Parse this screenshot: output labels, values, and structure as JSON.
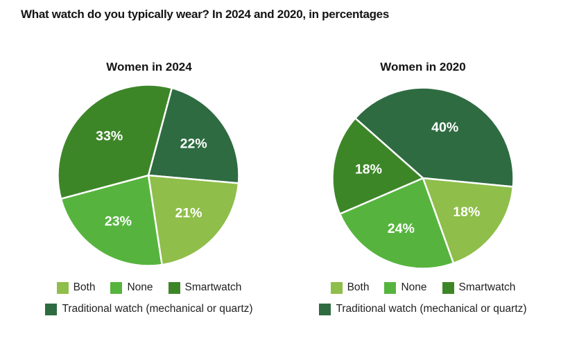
{
  "page": {
    "title": "What watch do you typically wear? In 2024 and 2020, in percentages"
  },
  "palette": {
    "both": "#8fbe4a",
    "none": "#56b43e",
    "smartwatch": "#3d8628",
    "traditional": "#2e6b41",
    "slice_separator": "#ffffff",
    "label_text": "#ffffff"
  },
  "legend": {
    "items": [
      {
        "label": "Both",
        "color": "#8fbe4a"
      },
      {
        "label": "None",
        "color": "#56b43e"
      },
      {
        "label": "Smartwatch",
        "color": "#3d8628"
      },
      {
        "label": "Traditional watch (mechanical or quartz)",
        "color": "#2e6b41"
      }
    ]
  },
  "chart_data": [
    {
      "type": "pie",
      "title": "Women in 2024",
      "unit": "percent",
      "start_angle": 15,
      "slices": [
        {
          "label": "Traditional watch (mechanical or quartz)",
          "value": 22,
          "display": "22%",
          "color": "#2e6b41"
        },
        {
          "label": "Both",
          "value": 21,
          "display": "21%",
          "color": "#8fbe4a"
        },
        {
          "label": "None",
          "value": 23,
          "display": "23%",
          "color": "#56b43e"
        },
        {
          "label": "Smartwatch",
          "value": 33,
          "display": "33%",
          "color": "#3d8628"
        }
      ]
    },
    {
      "type": "pie",
      "title": "Women in 2020",
      "unit": "percent",
      "start_angle": -48.5,
      "slices": [
        {
          "label": "Traditional watch (mechanical or quartz)",
          "value": 40,
          "display": "40%",
          "color": "#2e6b41"
        },
        {
          "label": "Both",
          "value": 18,
          "display": "18%",
          "color": "#8fbe4a"
        },
        {
          "label": "None",
          "value": 24,
          "display": "24%",
          "color": "#56b43e"
        },
        {
          "label": "Smartwatch",
          "value": 18,
          "display": "18%",
          "color": "#3d8628"
        }
      ]
    }
  ]
}
